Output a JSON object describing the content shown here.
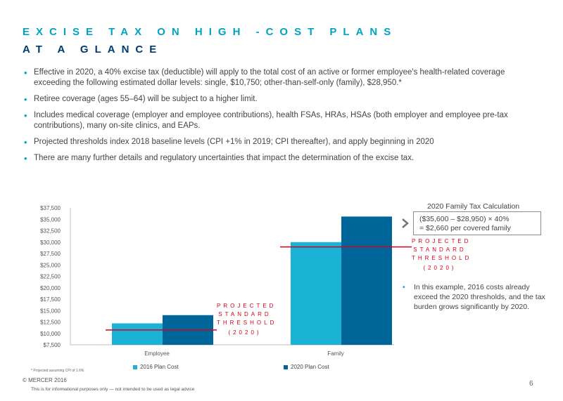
{
  "header": {
    "title_line1": "EXCISE TAX ON HIGH -COST PLANS",
    "title_line2": "AT A GLANCE"
  },
  "bullets": [
    "Effective in 2020, a 40% excise tax (deductible) will apply to the total cost of an active or former employee's health-related coverage exceeding the following estimated dollar levels: single, $10,750; other-than-self-only (family), $28,950.*",
    "Retiree coverage (ages 55–64) will be subject to a higher limit.",
    "Includes medical coverage (employer and employee contributions), health FSAs, HRAs, HSAs (both employer and employee pre-tax contributions), many on-site clinics, and EAPs.",
    "Projected thresholds index 2018 baseline levels (CPI +1% in 2019; CPI thereafter), and apply beginning in 2020",
    "There are many further details and regulatory uncertainties that impact the determination of the excise tax."
  ],
  "calc": {
    "title": "2020 Family Tax Calculation",
    "line1": "($35,600 – $28,950) × 40%",
    "line2": "= $2,660 per covered family"
  },
  "threshold_label": {
    "line1": "PROJECTED",
    "line2": "STANDARD",
    "line3": "THRESHOLD",
    "line4": "(2020)"
  },
  "side_note": "In this example, 2016 costs already exceed the 2020 thresholds, and the tax burden grows significantly by 2020.",
  "footnote": "* Projected assuming CPI of 1.6%",
  "copyright": "© MERCER 2016",
  "disclaimer": "This is for informational purposes only — not intended to be used as legal advice",
  "page_number": "6",
  "colors": {
    "series_2016": "#1ab3d6",
    "series_2020": "#006699",
    "threshold": "#d6001c",
    "title_accent": "#00a3c4",
    "title_dark": "#003a70"
  },
  "chart_data": {
    "type": "bar",
    "categories": [
      "Employee",
      "Family"
    ],
    "series": [
      {
        "name": "2016 Plan Cost",
        "values": [
          12200,
          30000
        ]
      },
      {
        "name": "2020 Plan Cost",
        "values": [
          14000,
          35600
        ]
      }
    ],
    "thresholds": [
      10750,
      28950
    ],
    "ylim": [
      7500,
      37500
    ],
    "yticks": [
      "$7,500",
      "$10,000",
      "$12,500",
      "$15,000",
      "$17,500",
      "$20,000",
      "$22,500",
      "$25,000",
      "$27,500",
      "$30,000",
      "$32,500",
      "$35,000",
      "$37,500"
    ],
    "tick_step": 2500,
    "legend_position": "bottom"
  }
}
